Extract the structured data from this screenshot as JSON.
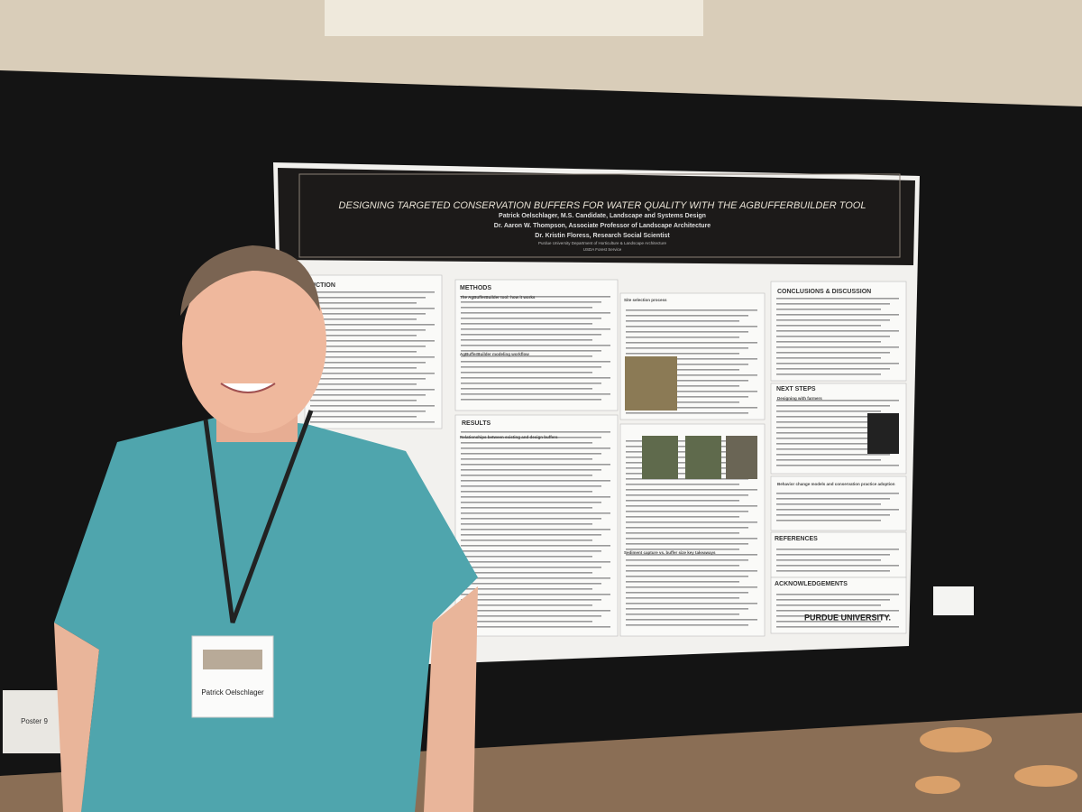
{
  "poster": {
    "title": "DESIGNING TARGETED CONSERVATION BUFFERS FOR WATER QUALITY WITH THE AGBUFFERBUILDER TOOL",
    "authors": [
      "Patrick Oelschlager, M.S. Candidate, Landscape and Systems Design",
      "Dr. Aaron W. Thompson, Associate Professor of Landscape Architecture",
      "Dr. Kristin Floress, Research Social Scientist"
    ],
    "affiliations": [
      "Purdue University Department of Horticulture & Landscape Architecture",
      "USDA Forest Service"
    ],
    "sections": [
      "DUCTION",
      "METHODS",
      "RESULTS",
      "CONCLUSIONS & DISCUSSION",
      "NEXT STEPS",
      "REFERENCES",
      "ACKNOWLEDGEMENTS"
    ],
    "subheadings": [
      "The AgBufferBuilder tool: how it works",
      "AgBufferBuilder modeling workflow",
      "Site selection process",
      "Relationships between existing and design buffers",
      "Sediment capture vs. buffer size key takeaways",
      "Designing with farmers",
      "Behavior change models and conservation practice adoption"
    ],
    "logo": "PURDUE UNIVERSITY."
  },
  "badge": {
    "name": "Patrick Oelschlager"
  },
  "sign": "Poster 9"
}
